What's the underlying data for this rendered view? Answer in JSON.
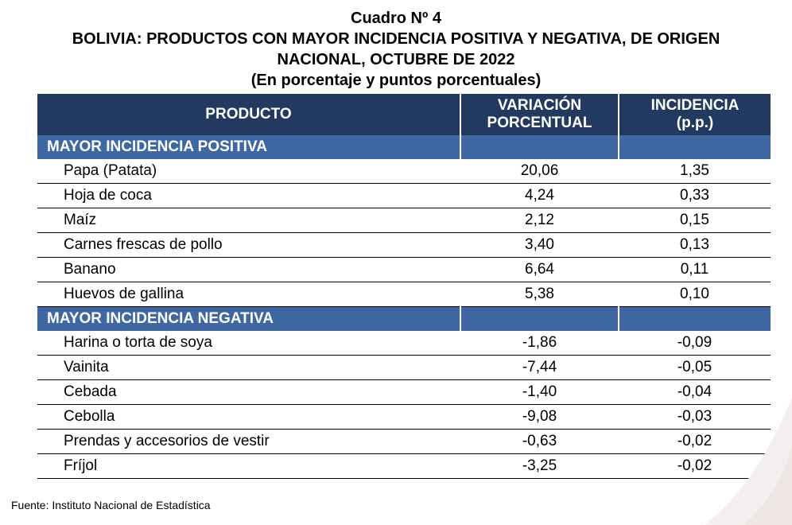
{
  "title": {
    "line1": "Cuadro Nº 4",
    "line2": "BOLIVIA: PRODUCTOS CON MAYOR INCIDENCIA POSITIVA Y NEGATIVA, DE ORIGEN",
    "line3": "NACIONAL, OCTUBRE DE 2022",
    "line4": "(En porcentaje y puntos porcentuales)"
  },
  "table": {
    "headers": {
      "producto": "PRODUCTO",
      "variacion_1": "VARIACIÓN",
      "variacion_2": "PORCENTUAL",
      "incidencia_1": "INCIDENCIA",
      "incidencia_2": "(p.p.)"
    },
    "positive": {
      "label": "MAYOR INCIDENCIA POSITIVA",
      "rows": [
        {
          "producto": "Papa (Patata)",
          "variacion": "20,06",
          "incidencia": "1,35"
        },
        {
          "producto": "Hoja de coca",
          "variacion": "4,24",
          "incidencia": "0,33"
        },
        {
          "producto": "Maíz",
          "variacion": "2,12",
          "incidencia": "0,15"
        },
        {
          "producto": "Carnes frescas de pollo",
          "variacion": "3,40",
          "incidencia": "0,13"
        },
        {
          "producto": "Banano",
          "variacion": "6,64",
          "incidencia": "0,11"
        },
        {
          "producto": "Huevos de gallina",
          "variacion": "5,38",
          "incidencia": "0,10"
        }
      ]
    },
    "negative": {
      "label": "MAYOR INCIDENCIA NEGATIVA",
      "rows": [
        {
          "producto": "Harina o torta de soya",
          "variacion": "-1,86",
          "incidencia": "-0,09"
        },
        {
          "producto": "Vainita",
          "variacion": "-7,44",
          "incidencia": "-0,05"
        },
        {
          "producto": "Cebada",
          "variacion": "-1,40",
          "incidencia": "-0,04"
        },
        {
          "producto": "Cebolla",
          "variacion": "-9,08",
          "incidencia": "-0,03"
        },
        {
          "producto": "Prendas y accesorios de vestir",
          "variacion": "-0,63",
          "incidencia": "-0,02"
        },
        {
          "producto": "Fríjol",
          "variacion": "-3,25",
          "incidencia": "-0,02"
        }
      ]
    }
  },
  "source": "Fuente: Instituto Nacional de Estadística",
  "colors": {
    "header_bg": "#233a60",
    "section_bg": "#3f68a3"
  }
}
